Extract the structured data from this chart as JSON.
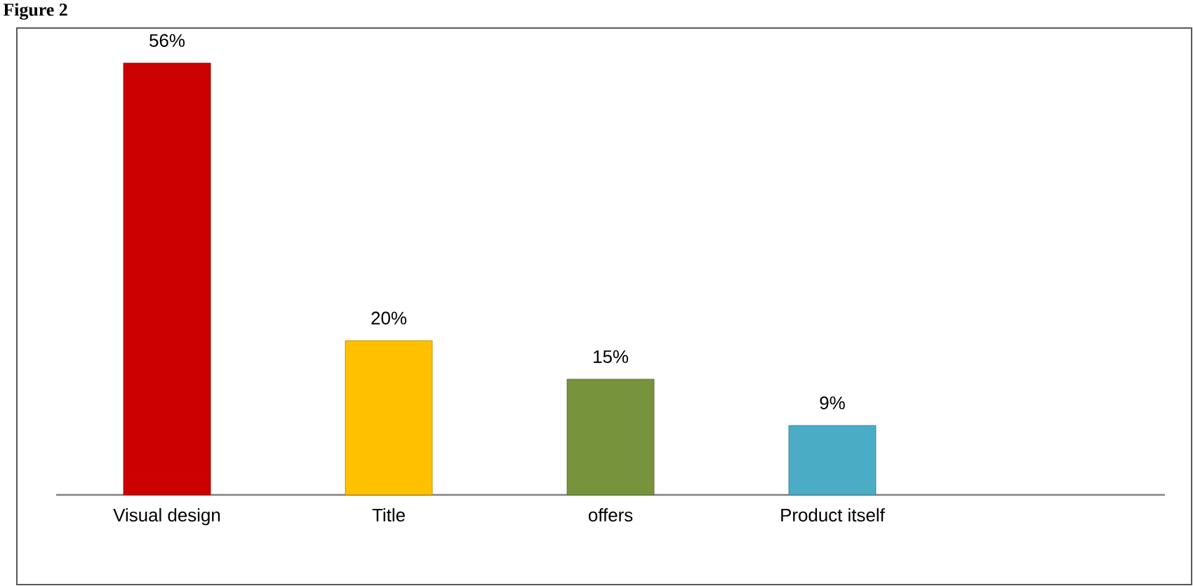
{
  "chart_data": {
    "type": "bar",
    "title": "Figure 2",
    "categories": [
      "Visual design",
      "Title",
      "offers",
      "Product itself",
      null
    ],
    "values": [
      56,
      20,
      15,
      9,
      null
    ],
    "colors": [
      "#cc0000",
      "#ffc000",
      "#77933c",
      "#4bacc6",
      null
    ],
    "value_labels": [
      "56%",
      "20%",
      "15%",
      "9%",
      null
    ]
  }
}
